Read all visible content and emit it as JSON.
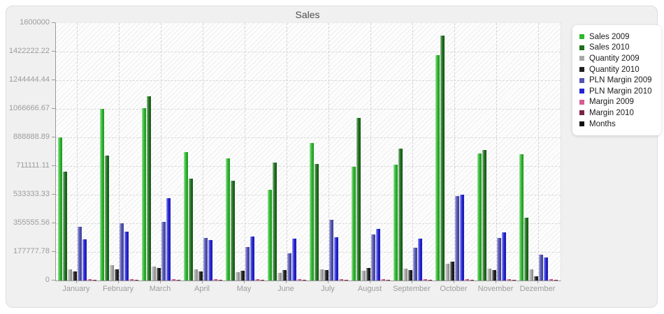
{
  "page": {
    "background": "#ffffff",
    "panel_background": "#f0f0f0",
    "axis_color": "#9a9a9a",
    "label_color": "#9c9c9c"
  },
  "chart_data": {
    "type": "bar",
    "title": "Sales",
    "xlabel": "",
    "ylabel": "",
    "ylim": [
      0,
      1600000
    ],
    "grid": "dashed horizontal lines at y ticks and dashed vertical lines at month centers",
    "plot_background": "white with light diagonal hatching",
    "legend_position": "right",
    "categories": [
      "January",
      "February",
      "March",
      "April",
      "May",
      "June",
      "July",
      "August",
      "September",
      "October",
      "November",
      "Dezember"
    ],
    "series": [
      {
        "name": "Sales 2009",
        "color": "#2db92d",
        "values": [
          888000,
          1065000,
          1071000,
          796000,
          759000,
          564000,
          856000,
          707000,
          720000,
          1402000,
          789000,
          786000
        ]
      },
      {
        "name": "Sales 2010",
        "color": "#1d6f1d",
        "values": [
          678000,
          776000,
          1145000,
          632000,
          619000,
          734000,
          726000,
          1012000,
          821000,
          1522000,
          809000,
          390000
        ]
      },
      {
        "name": "Quantity 2009",
        "color": "#a8a8a8",
        "values": [
          69000,
          95000,
          88000,
          68000,
          52000,
          48000,
          68000,
          61000,
          72000,
          104000,
          75000,
          69000
        ]
      },
      {
        "name": "Quantity 2010",
        "color": "#1f1f1f",
        "values": [
          56000,
          70000,
          80000,
          58000,
          61000,
          66000,
          64000,
          79000,
          64000,
          118000,
          64000,
          26000
        ]
      },
      {
        "name": "PLN Margin 2009",
        "color": "#5153b5",
        "values": [
          335000,
          355000,
          364000,
          263000,
          208000,
          168000,
          379000,
          288000,
          205000,
          523000,
          263000,
          162000
        ]
      },
      {
        "name": "PLN Margin 2010",
        "color": "#2424d6",
        "values": [
          257000,
          303000,
          512000,
          253000,
          272000,
          260000,
          269000,
          321000,
          260000,
          535000,
          300000,
          142000
        ]
      },
      {
        "name": "Margin 2009",
        "color": "#d65c93",
        "values": [
          9000,
          9000,
          9000,
          9000,
          9000,
          9000,
          9000,
          9000,
          9000,
          9000,
          9000,
          9000
        ]
      },
      {
        "name": "Margin 2010",
        "color": "#7a2248",
        "values": [
          6000,
          6000,
          6000,
          6000,
          6000,
          6000,
          6000,
          6000,
          6000,
          6000,
          6000,
          6000
        ]
      }
    ],
    "legend_extra": [
      {
        "name": "Months",
        "color": "#111111"
      }
    ],
    "yticks": [
      {
        "label": "1600000",
        "value": 1600000
      },
      {
        "label": "1422222.22",
        "value": 1422222.22
      },
      {
        "label": "1244444.44",
        "value": 1244444.44
      },
      {
        "label": "1066666.67",
        "value": 1066666.67
      },
      {
        "label": "888888.89",
        "value": 888888.89
      },
      {
        "label": "711111.11",
        "value": 711111.11
      },
      {
        "label": "533333.33",
        "value": 533333.33
      },
      {
        "label": "355555.56",
        "value": 355555.56
      },
      {
        "label": "177777.78",
        "value": 177777.78
      },
      {
        "label": "0",
        "value": 0
      }
    ]
  }
}
